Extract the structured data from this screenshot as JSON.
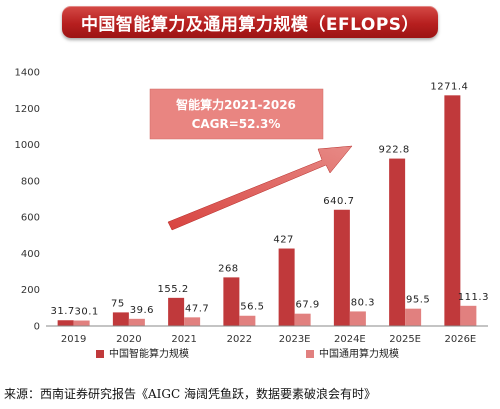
{
  "title": "中国智能算力及通用算力规模（EFLOPS）",
  "source": "来源：西南证券研究报告《AIGC 海阔凭鱼跃，数据要素破浪会有时》",
  "chart_data": {
    "type": "bar",
    "categories": [
      "2019",
      "2020",
      "2021",
      "2022",
      "2023E",
      "2024E",
      "2025E",
      "2026E"
    ],
    "series": [
      {
        "name": "中国智能算力规模",
        "color": "#c0393b",
        "values": [
          31.7,
          75,
          155.2,
          268,
          427,
          640.7,
          922.8,
          1271.4
        ],
        "labels": [
          "31.7",
          "75",
          "155.2",
          "268",
          "427",
          "640.7",
          "922.8",
          "1271.4"
        ]
      },
      {
        "name": "中国通用算力规模",
        "color": "#e1807f",
        "values": [
          30.1,
          39.6,
          47.7,
          56.5,
          67.9,
          80.3,
          95.5,
          111.3
        ],
        "labels": [
          "30.1",
          "39.6",
          "47.7",
          "56.5",
          "67.9",
          "80.3",
          "95.5",
          "111.3"
        ]
      }
    ],
    "ylim": [
      0,
      1400
    ],
    "yticks": [
      "0",
      "200",
      "400",
      "600",
      "800",
      "1000",
      "1200",
      "1400"
    ],
    "grid": false,
    "legend_position": "bottom",
    "annotation": {
      "line1": "智能算力2021-2026",
      "line2": "CAGR=52.3%"
    }
  }
}
